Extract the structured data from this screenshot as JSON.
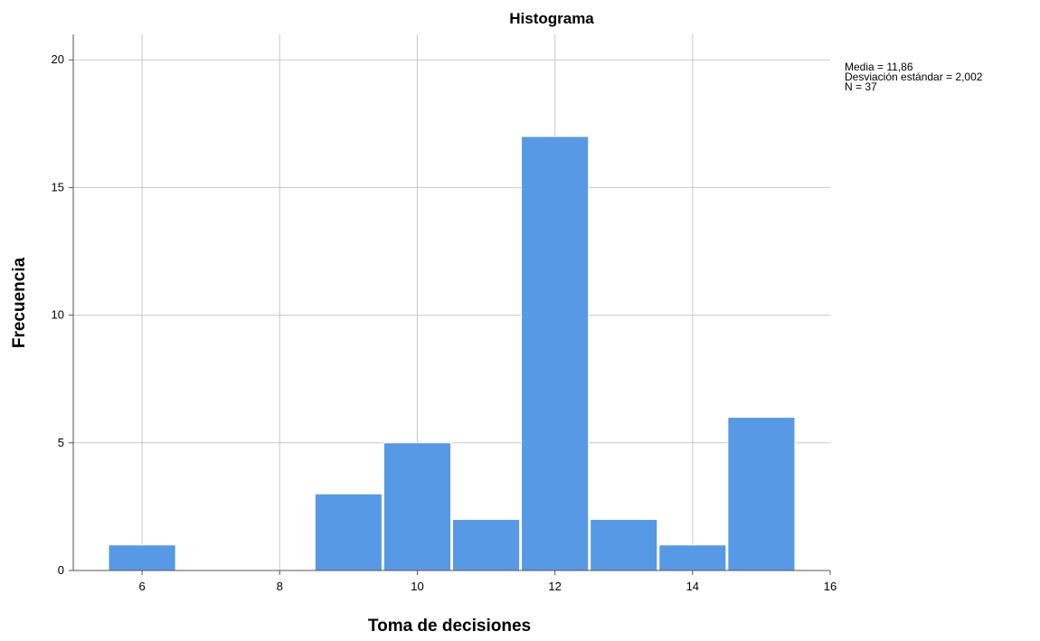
{
  "chart_data": {
    "type": "bar",
    "title": "Histograma",
    "xlabel": "Toma de decisiones",
    "ylabel": "Frecuencia",
    "xlim": [
      5,
      16
    ],
    "ylim": [
      0,
      21
    ],
    "x_ticks": [
      6,
      8,
      10,
      12,
      14,
      16
    ],
    "y_ticks": [
      0,
      5,
      10,
      15,
      20
    ],
    "grid": true,
    "bar_color": "#5799e5",
    "bins": [
      {
        "center": 6,
        "value": 1
      },
      {
        "center": 9,
        "value": 3
      },
      {
        "center": 10,
        "value": 5
      },
      {
        "center": 11,
        "value": 2
      },
      {
        "center": 12,
        "value": 17
      },
      {
        "center": 13,
        "value": 2
      },
      {
        "center": 14,
        "value": 1
      },
      {
        "center": 15,
        "value": 6
      }
    ],
    "stats": {
      "mean": "Media = 11,86",
      "sd": "Desviación estándar = 2,002",
      "n": "N = 37"
    }
  }
}
